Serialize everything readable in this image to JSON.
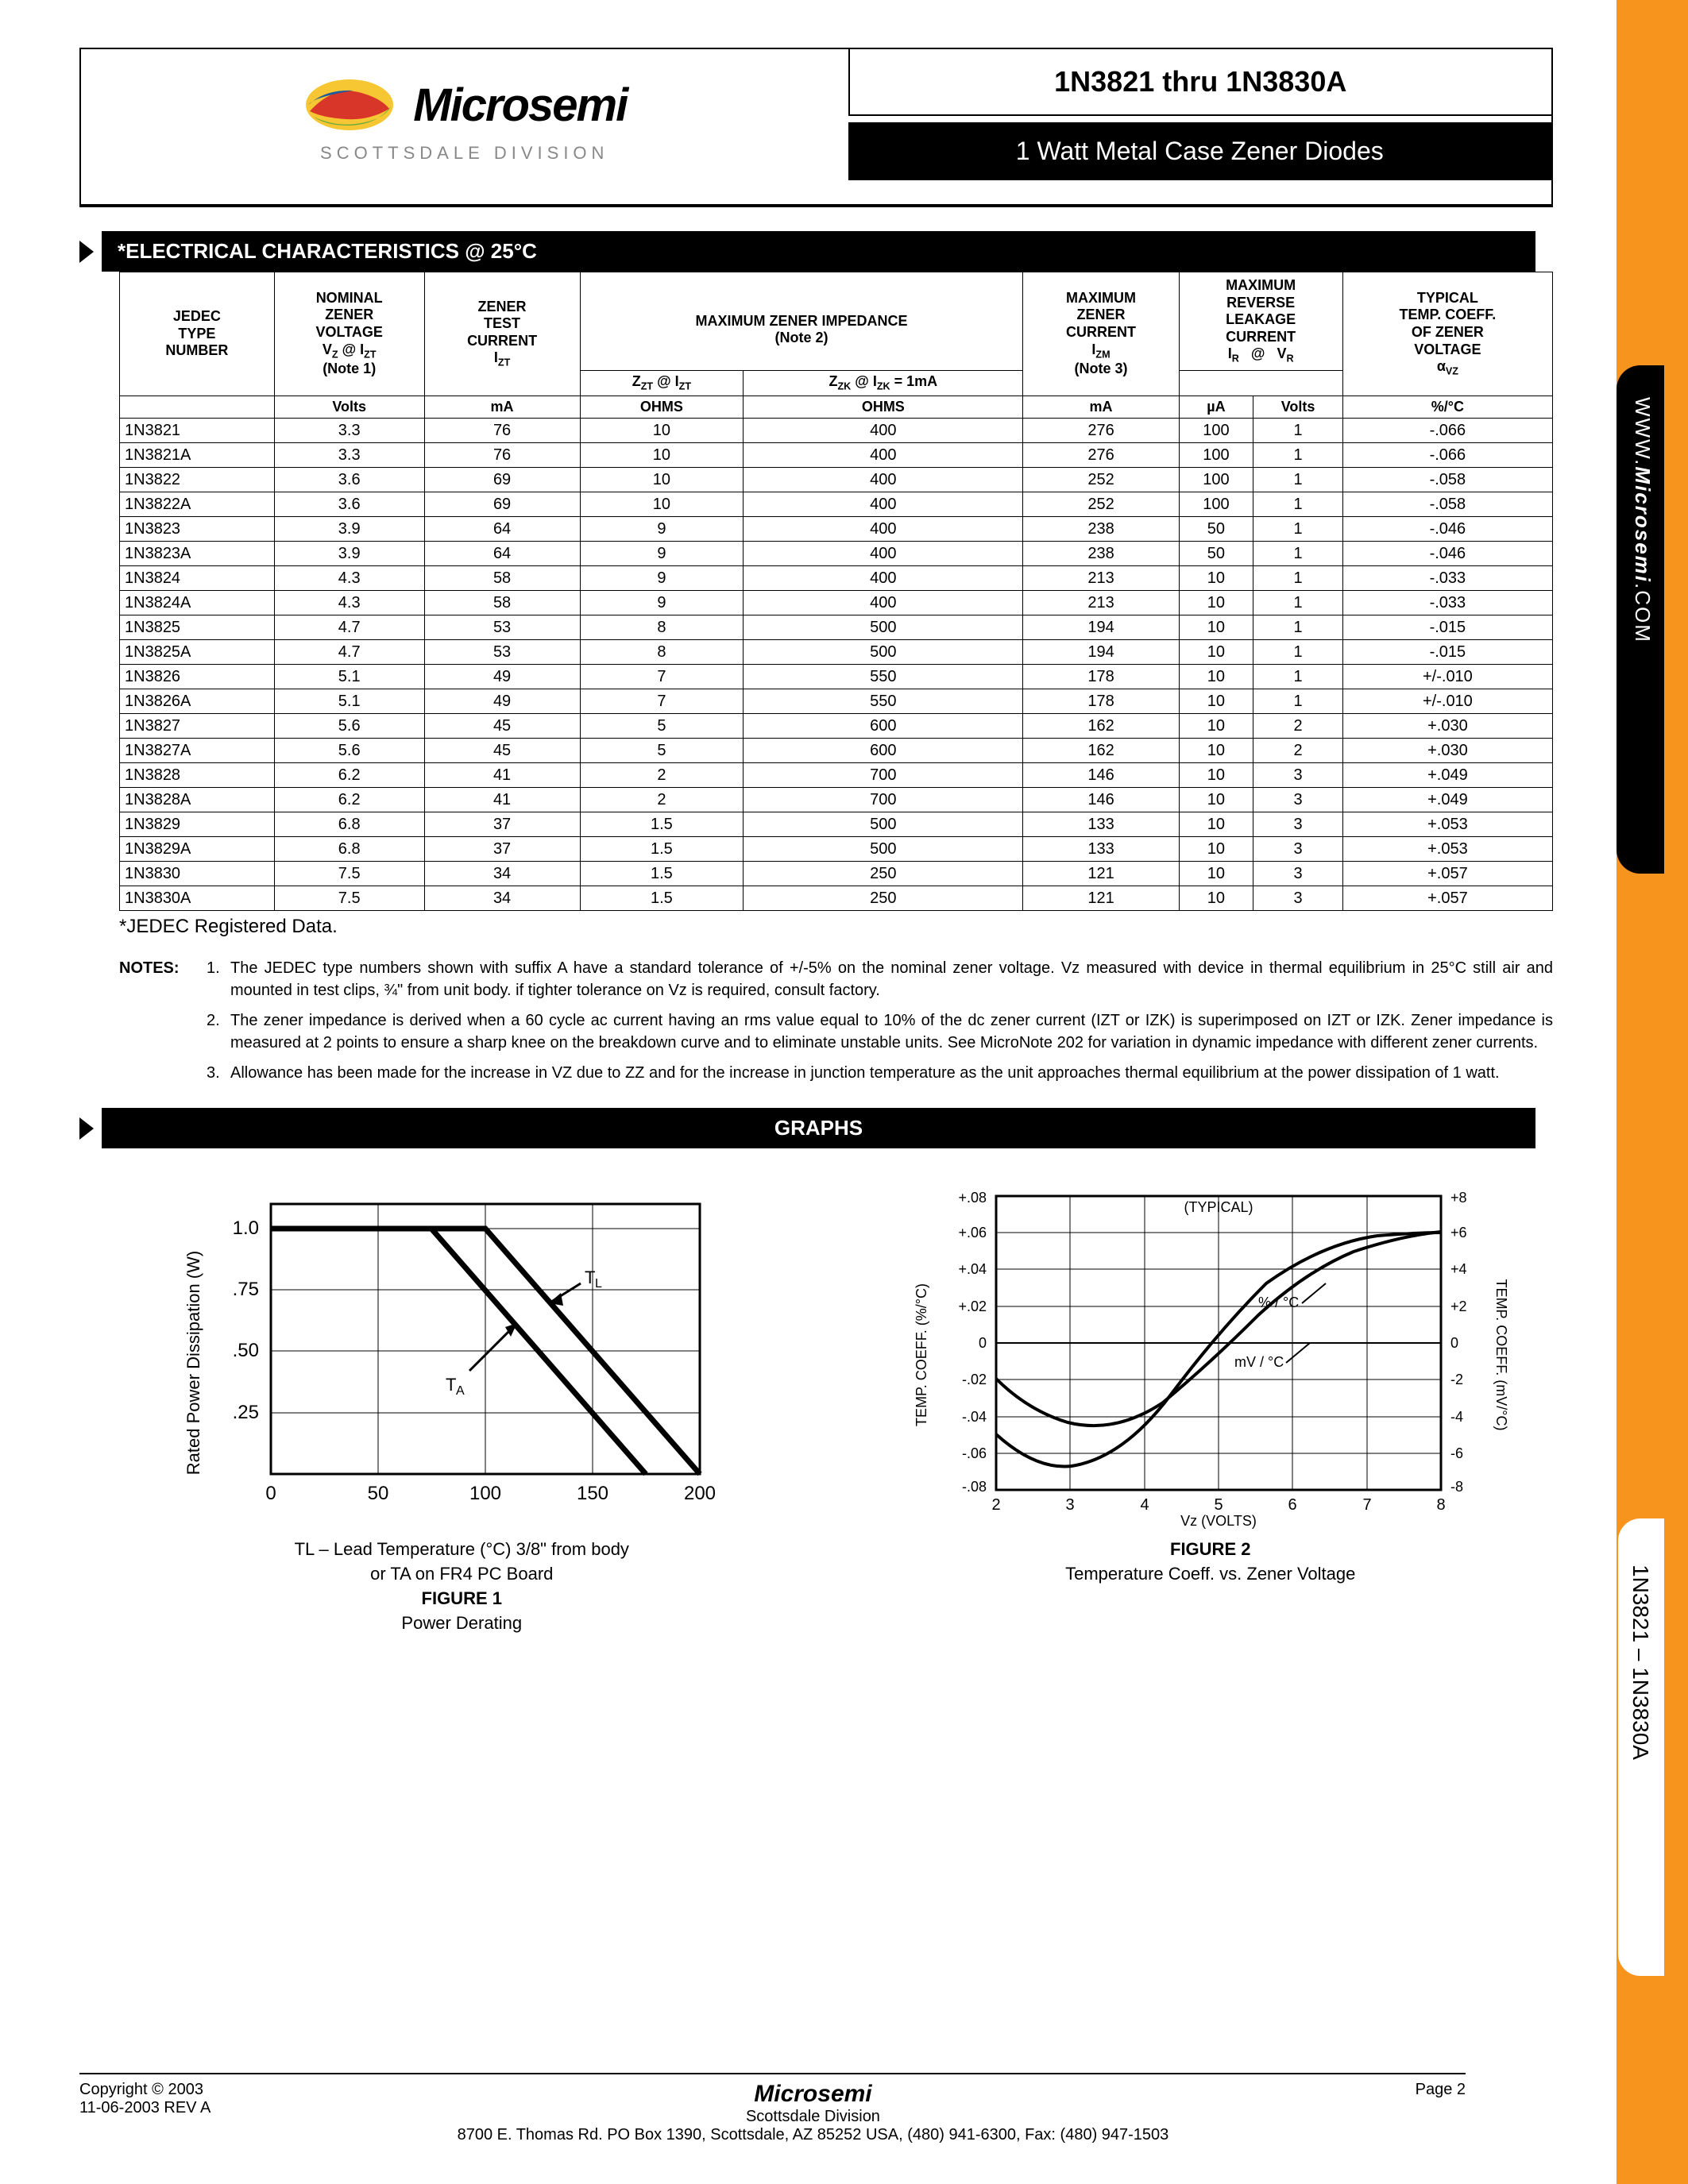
{
  "header": {
    "company": "Microsemi",
    "division": "SCOTTSDALE DIVISION",
    "part_range": "1N3821 thru 1N3830A",
    "product_desc": "1 Watt Metal Case Zener Diodes"
  },
  "logo_colors": {
    "yellow": "#f7c733",
    "red": "#d9362a",
    "green": "#5aa83e",
    "blue": "#1e5a9c"
  },
  "section1_title": "*ELECTRICAL CHARACTERISTICS @ 25°C",
  "table_headers": {
    "col1_l1": "JEDEC",
    "col1_l2": "TYPE",
    "col1_l3": "NUMBER",
    "col2_l1": "NOMINAL",
    "col2_l2": "ZENER",
    "col2_l3": "VOLTAGE",
    "col2_l4": "V",
    "col2_l5": " @ I",
    "col2_note": "(Note 1)",
    "col2_unit": "Volts",
    "col3_l1": "ZENER",
    "col3_l2": "TEST",
    "col3_l3": "CURRENT",
    "col3_sym": "I",
    "col3_unit": "mA",
    "col4_title": "MAXIMUM ZENER IMPEDANCE",
    "col4_note": "(Note 2)",
    "col4a_sym": "Z",
    "col4a_at": " @ I",
    "col4a_unit": "OHMS",
    "col4b_sym": "Z",
    "col4b_at": " @ I",
    "col4b_eq": " = 1mA",
    "col4b_unit": "OHMS",
    "col5_l1": "MAXIMUM",
    "col5_l2": "ZENER",
    "col5_l3": "CURRENT",
    "col5_sym": "I",
    "col5_note": "(Note 3)",
    "col5_unit": "mA",
    "col6_l1": "MAXIMUM",
    "col6_l2": "REVERSE",
    "col6_l3": "LEAKAGE",
    "col6_l4": "CURRENT",
    "col6a_sym": "I",
    "col6a_at": "@",
    "col6a_v": "V",
    "col6a_unit": "µA",
    "col6b_unit": "Volts",
    "col7_l1": "TYPICAL",
    "col7_l2": "TEMP. COEFF.",
    "col7_l3": "OF ZENER",
    "col7_l4": "VOLTAGE",
    "col7_sym": "α",
    "col7_unit": "%/°C"
  },
  "rows": [
    [
      "1N3821",
      "3.3",
      "76",
      "10",
      "400",
      "276",
      "100",
      "1",
      "-.066"
    ],
    [
      "1N3821A",
      "3.3",
      "76",
      "10",
      "400",
      "276",
      "100",
      "1",
      "-.066"
    ],
    [
      "1N3822",
      "3.6",
      "69",
      "10",
      "400",
      "252",
      "100",
      "1",
      "-.058"
    ],
    [
      "1N3822A",
      "3.6",
      "69",
      "10",
      "400",
      "252",
      "100",
      "1",
      "-.058"
    ],
    [
      "1N3823",
      "3.9",
      "64",
      "9",
      "400",
      "238",
      "50",
      "1",
      "-.046"
    ],
    [
      "1N3823A",
      "3.9",
      "64",
      "9",
      "400",
      "238",
      "50",
      "1",
      "-.046"
    ],
    [
      "1N3824",
      "4.3",
      "58",
      "9",
      "400",
      "213",
      "10",
      "1",
      "-.033"
    ],
    [
      "1N3824A",
      "4.3",
      "58",
      "9",
      "400",
      "213",
      "10",
      "1",
      "-.033"
    ],
    [
      "1N3825",
      "4.7",
      "53",
      "8",
      "500",
      "194",
      "10",
      "1",
      "-.015"
    ],
    [
      "1N3825A",
      "4.7",
      "53",
      "8",
      "500",
      "194",
      "10",
      "1",
      "-.015"
    ],
    [
      "1N3826",
      "5.1",
      "49",
      "7",
      "550",
      "178",
      "10",
      "1",
      "+/-.010"
    ],
    [
      "1N3826A",
      "5.1",
      "49",
      "7",
      "550",
      "178",
      "10",
      "1",
      "+/-.010"
    ],
    [
      "1N3827",
      "5.6",
      "45",
      "5",
      "600",
      "162",
      "10",
      "2",
      "+.030"
    ],
    [
      "1N3827A",
      "5.6",
      "45",
      "5",
      "600",
      "162",
      "10",
      "2",
      "+.030"
    ],
    [
      "1N3828",
      "6.2",
      "41",
      "2",
      "700",
      "146",
      "10",
      "3",
      "+.049"
    ],
    [
      "1N3828A",
      "6.2",
      "41",
      "2",
      "700",
      "146",
      "10",
      "3",
      "+.049"
    ],
    [
      "1N3829",
      "6.8",
      "37",
      "1.5",
      "500",
      "133",
      "10",
      "3",
      "+.053"
    ],
    [
      "1N3829A",
      "6.8",
      "37",
      "1.5",
      "500",
      "133",
      "10",
      "3",
      "+.053"
    ],
    [
      "1N3830",
      "7.5",
      "34",
      "1.5",
      "250",
      "121",
      "10",
      "3",
      "+.057"
    ],
    [
      "1N3830A",
      "7.5",
      "34",
      "1.5",
      "250",
      "121",
      "10",
      "3",
      "+.057"
    ]
  ],
  "jedec_note": "*JEDEC Registered Data.",
  "notes_label": "NOTES:",
  "notes": [
    "The JEDEC type numbers shown with suffix A have a standard tolerance of +/-5% on the nominal zener voltage.  Vz measured with device in thermal equilibrium in 25°C still air and mounted in test clips, ¾\" from unit body.  if tighter tolerance on Vz is required, consult factory.",
    "The zener impedance is derived when a 60 cycle ac current having an rms value equal to 10% of the dc zener current (IZT or IZK) is superimposed on IZT or IZK.  Zener impedance is measured at 2 points to ensure a sharp knee on the breakdown curve and to eliminate unstable units.  See MicroNote 202 for variation in dynamic impedance with different zener currents.",
    "Allowance has been made for the increase in VZ due to ZZ and for the increase in junction temperature as the unit approaches thermal equilibrium at the power dissipation of 1 watt."
  ],
  "section2_title": "GRAPHS",
  "figure1": {
    "ylabel": "Rated Power Dissipation (W)",
    "yticks": [
      ".25",
      ".50",
      ".75",
      "1.0"
    ],
    "xticks": [
      "0",
      "50",
      "100",
      "150",
      "200"
    ],
    "xlim": [
      0,
      200
    ],
    "ylim": [
      0,
      1.1
    ],
    "line_TA": [
      [
        0,
        1.0
      ],
      [
        75,
        1.0
      ],
      [
        175,
        0
      ]
    ],
    "line_TL": [
      [
        0,
        1.0
      ],
      [
        100,
        1.0
      ],
      [
        200,
        0
      ]
    ],
    "label_TA": "TA",
    "label_TL": "TL",
    "caption_l1": "TL – Lead Temperature (°C) 3/8\" from body",
    "caption_l2": "or TA on FR4 PC Board",
    "title": "FIGURE 1",
    "subtitle": "Power Derating"
  },
  "figure2": {
    "ylabel_left": "TEMP. COEFF. (%/°C)",
    "ylabel_right": "TEMP. COEFF. (mV/°C)",
    "xlabel": "Vz (VOLTS)",
    "yticks_left": [
      "-.08",
      "-.06",
      "-.04",
      "-.02",
      "0",
      "+.02",
      "+.04",
      "+.06",
      "+.08"
    ],
    "yticks_right": [
      "-8",
      "-6",
      "-4",
      "-2",
      "0",
      "+2",
      "+4",
      "+6",
      "+8"
    ],
    "xticks": [
      "2",
      "3",
      "4",
      "5",
      "6",
      "7",
      "8"
    ],
    "typical_label": "(TYPICAL)",
    "curve1_label": "% / °C",
    "curve2_label": "mV / °C",
    "title": "FIGURE 2",
    "subtitle": "Temperature Coeff. vs. Zener Voltage"
  },
  "footer": {
    "copyright": "Copyright © 2003",
    "rev": "11-06-2003  REV A",
    "company": "Microsemi",
    "division": "Scottsdale Division",
    "address": "8700 E. Thomas Rd. PO Box 1390, Scottsdale, AZ 85252 USA, (480) 941-6300, Fax: (480) 947-1503",
    "page": "Page 2"
  },
  "side": {
    "url_pre": "WWW.",
    "url_main": "Microsemi",
    "url_post": ".COM",
    "parts": "1N3821 – 1N3830A"
  },
  "colors": {
    "orange": "#f7941e",
    "black": "#000"
  }
}
